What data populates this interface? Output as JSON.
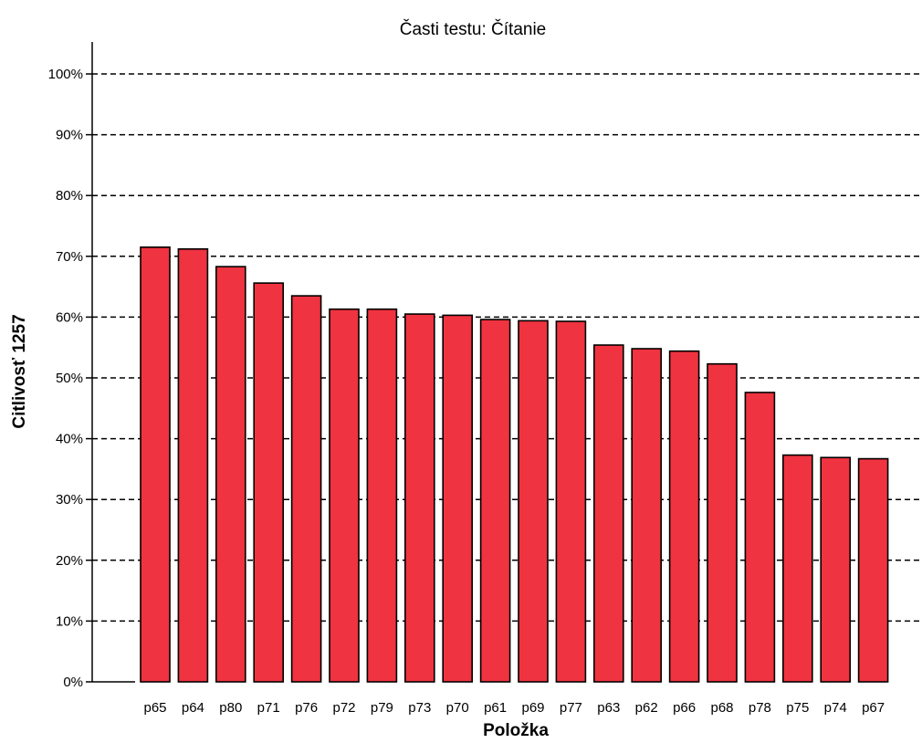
{
  "chart_data": {
    "type": "bar",
    "title": "Časti testu: Čítanie",
    "xlabel": "Položka",
    "ylabel": "Citlivosť 1257",
    "ylim": [
      0,
      100
    ],
    "yticks": [
      "0%",
      "10%",
      "20%",
      "30%",
      "40%",
      "50%",
      "60%",
      "70%",
      "80%",
      "90%",
      "100%"
    ],
    "grid": true,
    "bar_color": "#ef3340",
    "categories": [
      "p65",
      "p64",
      "p80",
      "p71",
      "p76",
      "p72",
      "p79",
      "p73",
      "p70",
      "p61",
      "p69",
      "p77",
      "p63",
      "p62",
      "p66",
      "p68",
      "p78",
      "p75",
      "p74",
      "p67"
    ],
    "values": [
      71.5,
      71.2,
      68.3,
      65.6,
      63.5,
      61.3,
      61.3,
      60.5,
      60.3,
      59.6,
      59.4,
      59.3,
      55.4,
      54.8,
      54.4,
      52.3,
      47.6,
      37.3,
      36.9,
      36.7
    ]
  }
}
